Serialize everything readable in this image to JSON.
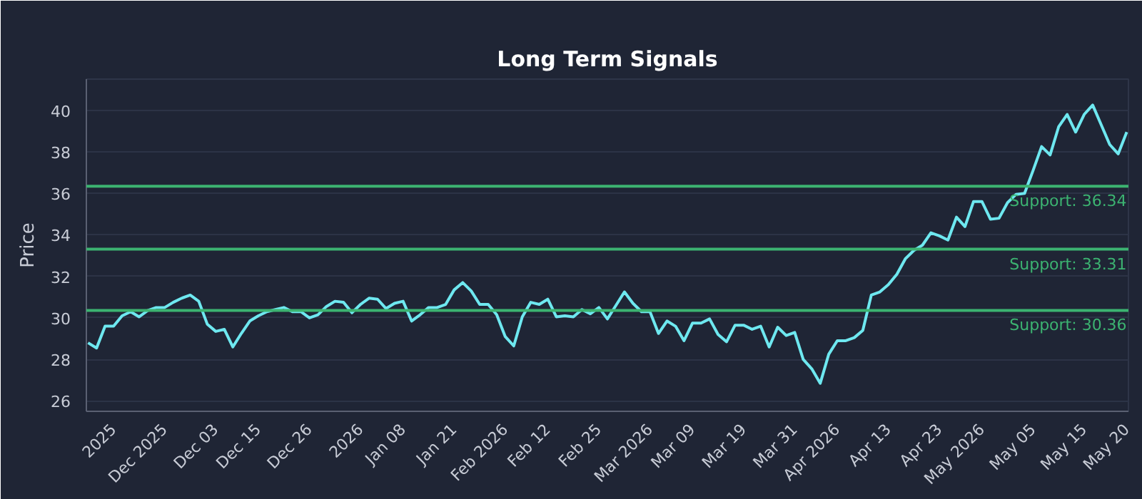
{
  "chart_data": {
    "type": "line",
    "title": "Long Term Signals",
    "ylabel": "Price",
    "categories": [
      null,
      null,
      null,
      "2025",
      null,
      null,
      null,
      null,
      null,
      "Dec 2025",
      null,
      null,
      null,
      null,
      null,
      "Dec 03",
      null,
      null,
      null,
      null,
      "Dec 15",
      null,
      null,
      null,
      null,
      null,
      "Dec 26",
      null,
      null,
      null,
      null,
      null,
      "2026",
      null,
      null,
      null,
      null,
      "Jan 08",
      null,
      null,
      null,
      null,
      null,
      "Jan 21",
      null,
      null,
      null,
      null,
      null,
      "Feb 2026",
      null,
      null,
      null,
      null,
      "Feb 12",
      null,
      null,
      null,
      null,
      null,
      "Feb 25",
      null,
      null,
      null,
      null,
      null,
      "Mar 2026",
      null,
      null,
      null,
      null,
      "Mar 09",
      null,
      null,
      null,
      null,
      null,
      "Mar 19",
      null,
      null,
      null,
      null,
      null,
      "Mar 31",
      null,
      null,
      null,
      null,
      "Apr 2026",
      null,
      null,
      null,
      null,
      null,
      "Apr 13",
      null,
      null,
      null,
      null,
      null,
      "Apr 23",
      null,
      null,
      null,
      null,
      "May 2026",
      null,
      null,
      null,
      null,
      null,
      "May 05",
      null,
      null,
      null,
      null,
      null,
      "May 15",
      null,
      null,
      null,
      null,
      "May 20"
    ],
    "series": [
      {
        "color": "#6ee8f0",
        "values": [
          28.8,
          28.55,
          29.6,
          29.6,
          30.1,
          30.3,
          30.05,
          30.35,
          30.5,
          30.5,
          30.75,
          30.95,
          31.1,
          30.8,
          29.7,
          29.35,
          29.45,
          28.6,
          29.25,
          29.85,
          30.1,
          30.3,
          30.4,
          30.5,
          30.3,
          30.3,
          30.0,
          30.15,
          30.55,
          30.8,
          30.75,
          30.25,
          30.65,
          30.95,
          30.9,
          30.45,
          30.7,
          30.8,
          29.85,
          30.15,
          30.5,
          30.5,
          30.65,
          31.35,
          31.7,
          31.3,
          30.65,
          30.65,
          30.15,
          29.1,
          28.65,
          30.05,
          30.75,
          30.65,
          30.9,
          30.05,
          30.1,
          30.05,
          30.4,
          30.2,
          30.5,
          29.95,
          30.6,
          31.25,
          30.7,
          30.3,
          30.3,
          29.25,
          29.85,
          29.6,
          28.9,
          29.75,
          29.75,
          29.95,
          29.2,
          28.85,
          29.65,
          29.65,
          29.45,
          29.6,
          28.6,
          29.55,
          29.15,
          29.3,
          28.0,
          27.55,
          26.85,
          28.25,
          28.9,
          28.9,
          29.05,
          29.4,
          31.1,
          31.25,
          31.6,
          32.1,
          32.85,
          33.25,
          33.5,
          34.1,
          33.95,
          33.75,
          34.85,
          34.4,
          35.6,
          35.6,
          34.75,
          34.8,
          35.55,
          35.95,
          36.0,
          37.1,
          38.25,
          37.85,
          39.2,
          39.8,
          38.95,
          39.8,
          40.25,
          39.3,
          38.35,
          37.9,
          38.95
        ]
      }
    ],
    "ylim": [
      25.5,
      41.5
    ],
    "yticks": [
      26,
      28,
      30,
      32,
      34,
      36,
      38,
      40
    ],
    "grid": "y",
    "legend": false,
    "marker": "none",
    "line_style": "solid",
    "ref_lines": [
      {
        "axis": "y",
        "value": 36.34,
        "label": "Support: 36.34",
        "color": "#3cb371"
      },
      {
        "axis": "y",
        "value": 33.31,
        "label": "Support: 33.31",
        "color": "#3cb371"
      },
      {
        "axis": "y",
        "value": 30.36,
        "label": "Support: 30.36",
        "color": "#3cb371"
      }
    ]
  }
}
